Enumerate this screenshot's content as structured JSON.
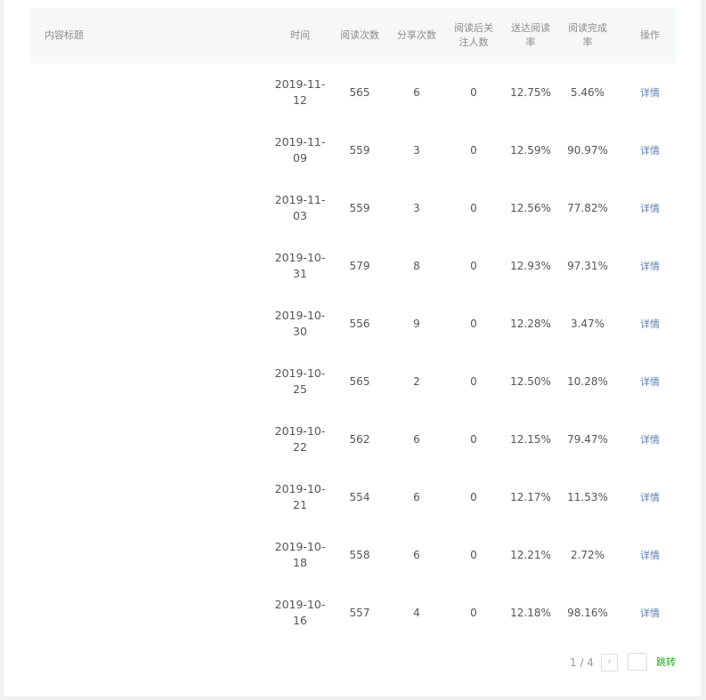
{
  "table": {
    "headers": {
      "title": "内容标题",
      "time": "时间",
      "reads": "阅读次数",
      "shares": "分享次数",
      "follow": "阅读后关注人数",
      "delivery": "送达阅读率",
      "complete": "阅读完成率",
      "action": "操作"
    },
    "rows": [
      {
        "title": "",
        "time": "2019-11-12",
        "reads": "565",
        "shares": "6",
        "follow": "0",
        "delivery": "12.75%",
        "complete": "5.46%",
        "action": "详情"
      },
      {
        "title": "",
        "time": "2019-11-09",
        "reads": "559",
        "shares": "3",
        "follow": "0",
        "delivery": "12.59%",
        "complete": "90.97%",
        "action": "详情"
      },
      {
        "title": "",
        "time": "2019-11-03",
        "reads": "559",
        "shares": "3",
        "follow": "0",
        "delivery": "12.56%",
        "complete": "77.82%",
        "action": "详情"
      },
      {
        "title": "",
        "time": "2019-10-31",
        "reads": "579",
        "shares": "8",
        "follow": "0",
        "delivery": "12.93%",
        "complete": "97.31%",
        "action": "详情"
      },
      {
        "title": "",
        "time": "2019-10-30",
        "reads": "556",
        "shares": "9",
        "follow": "0",
        "delivery": "12.28%",
        "complete": "3.47%",
        "action": "详情"
      },
      {
        "title": "",
        "time": "2019-10-25",
        "reads": "565",
        "shares": "2",
        "follow": "0",
        "delivery": "12.50%",
        "complete": "10.28%",
        "action": "详情"
      },
      {
        "title": "",
        "time": "2019-10-22",
        "reads": "562",
        "shares": "6",
        "follow": "0",
        "delivery": "12.15%",
        "complete": "79.47%",
        "action": "详情"
      },
      {
        "title": "",
        "time": "2019-10-21",
        "reads": "554",
        "shares": "6",
        "follow": "0",
        "delivery": "12.17%",
        "complete": "11.53%",
        "action": "详情"
      },
      {
        "title": "",
        "time": "2019-10-18",
        "reads": "558",
        "shares": "6",
        "follow": "0",
        "delivery": "12.21%",
        "complete": "2.72%",
        "action": "详情"
      },
      {
        "title": "",
        "time": "2019-10-16",
        "reads": "557",
        "shares": "4",
        "follow": "0",
        "delivery": "12.18%",
        "complete": "98.16%",
        "action": "详情"
      }
    ]
  },
  "pagination": {
    "page_info": "1 / 4",
    "next_icon": "chevron-right-icon",
    "next_glyph": "›",
    "jump_value": "",
    "jump_label": "跳转"
  },
  "colors": {
    "link": "#5b7db1",
    "jump": "#1aad19",
    "header_bg": "#f6f7f9"
  }
}
